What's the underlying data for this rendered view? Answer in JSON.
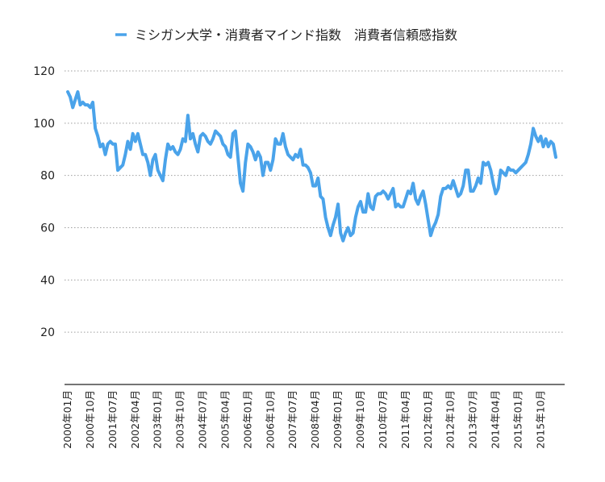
{
  "chart_data": {
    "type": "line",
    "legend_position": "top",
    "grid": true,
    "ylim": [
      0,
      120
    ],
    "y_ticks": [
      "20",
      "40",
      "60",
      "80",
      "100",
      "120"
    ],
    "x_tick_labels": [
      "2000年01月",
      "2000年10月",
      "2001年07月",
      "2002年04月",
      "2003年01月",
      "2003年10月",
      "2004年07月",
      "2005年04月",
      "2006年01月",
      "2006年10月",
      "2007年07月",
      "2008年04月",
      "2009年01月",
      "2009年10月",
      "2010年07月",
      "2011年04月",
      "2012年01月",
      "2012年10月",
      "2013年07月",
      "2014年04月",
      "2015年01月",
      "2015年10月"
    ],
    "series": [
      {
        "name": "ミシガン大学・消費者マインド指数　消費者信頼感指数",
        "color": "#4aa3ea",
        "values": [
          112,
          110,
          106,
          109,
          112,
          107,
          108,
          107,
          107,
          106,
          108,
          98,
          95,
          91,
          92,
          88,
          92,
          93,
          92,
          92,
          82,
          83,
          84,
          88,
          93,
          90,
          96,
          93,
          96,
          92,
          88,
          88,
          85,
          80,
          86,
          88,
          82,
          80,
          78,
          86,
          92,
          90,
          91,
          89,
          88,
          90,
          94,
          93,
          103,
          94,
          96,
          92,
          89,
          95,
          96,
          95,
          93,
          92,
          94,
          97,
          96,
          95,
          92,
          91,
          88,
          87,
          96,
          97,
          87,
          77,
          74,
          85,
          92,
          91,
          89,
          86,
          89,
          87,
          80,
          85,
          85,
          82,
          86,
          94,
          92,
          92,
          96,
          91,
          88,
          87,
          86,
          88,
          87,
          90,
          84,
          84,
          83,
          81,
          76,
          76,
          79,
          72,
          71,
          64,
          60,
          57,
          61,
          64,
          69,
          58,
          55,
          58,
          60,
          57,
          58,
          64,
          68,
          70,
          66,
          66,
          73,
          68,
          67,
          72,
          73,
          73,
          74,
          73,
          71,
          73,
          75,
          68,
          69,
          68,
          68,
          71,
          74,
          73,
          77,
          71,
          69,
          72,
          74,
          69,
          63,
          57,
          60,
          62,
          65,
          72,
          75,
          75,
          76,
          75,
          78,
          75,
          72,
          73,
          76,
          82,
          82,
          74,
          74,
          76,
          79,
          77,
          85,
          84,
          85,
          82,
          77,
          73,
          75,
          82,
          81,
          80,
          83,
          82,
          82,
          81,
          82,
          83,
          84,
          85,
          88,
          92,
          98,
          95,
          93,
          95,
          91,
          94,
          91,
          93,
          92,
          87
        ]
      }
    ]
  }
}
